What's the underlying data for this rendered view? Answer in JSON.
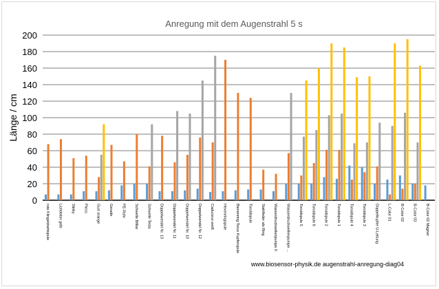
{
  "chart_data": {
    "type": "bar",
    "title": "Anregung mit dem Augenstrahl 5 s",
    "ylabel": "Länge / cm",
    "xlabel": "",
    "ylim": [
      0,
      200
    ],
    "yticks": [
      0,
      20,
      40,
      60,
      80,
      100,
      120,
      140,
      160,
      180,
      200
    ],
    "grid": true,
    "legend": "none",
    "footer": "www.biosensor-physik.de augenstrahl-anregung-diag04",
    "colors": [
      "#5b9bd5",
      "#ed7d31",
      "#a5a5a5",
      "#ffc000"
    ],
    "categories": [
      "rote Klingeldrahtspule",
      "Lichtleiter gelb",
      "Slinky",
      "Piezo",
      "Gurt orange",
      "Gerade",
      "PE-Rohr",
      "Schwelle Bifilar",
      "Schwelle Tesla",
      "Doppelwendel Nr. 13",
      "Doppelwendel Nr. 11",
      "Doppelwendel Nr. 10",
      "Doppelwendel Nr. 12",
      "Caduceus weiß",
      "Hexenringspule",
      "Bienenring Torus Kupferspule",
      "Toroidspule",
      "Stahlfeder als Ring",
      "Wasserdruckwellenpumpe II",
      "Wasserdruckwellenpumpe ...",
      "Toroidspule 5",
      "Toroidspule 6",
      "Toroidspule 2",
      "Toroidspule 1",
      "Toroidspule 4",
      "Toroidspule 3",
      "Doppelkupfer U-Leitung",
      "L-Color 01",
      "B-Color 02",
      "B-Color 03",
      "B-Color 02 Magnet"
    ],
    "series": [
      {
        "values": [
          7,
          7,
          7,
          11,
          11,
          12,
          18,
          20,
          20,
          11,
          11,
          12,
          14,
          10,
          11,
          12,
          13,
          13,
          11,
          20,
          20,
          20,
          28,
          26,
          42,
          40,
          20,
          25,
          30,
          20,
          18
        ]
      },
      {
        "values": [
          68,
          74,
          51,
          54,
          28,
          67,
          47,
          80,
          41,
          78,
          46,
          55,
          76,
          70,
          170,
          130,
          124,
          37,
          32,
          57,
          30,
          45,
          61,
          61,
          25,
          34,
          41,
          7,
          14,
          20,
          null
        ]
      },
      {
        "values": [
          null,
          null,
          null,
          null,
          55,
          null,
          null,
          null,
          92,
          null,
          108,
          105,
          145,
          175,
          null,
          null,
          null,
          null,
          null,
          130,
          77,
          85,
          103,
          105,
          69,
          70,
          94,
          90,
          106,
          70,
          null
        ]
      },
      {
        "values": [
          null,
          null,
          null,
          null,
          92,
          null,
          null,
          null,
          null,
          null,
          null,
          null,
          null,
          null,
          null,
          null,
          null,
          null,
          null,
          null,
          145,
          160,
          190,
          185,
          149,
          150,
          null,
          190,
          195,
          163,
          null
        ]
      }
    ]
  }
}
